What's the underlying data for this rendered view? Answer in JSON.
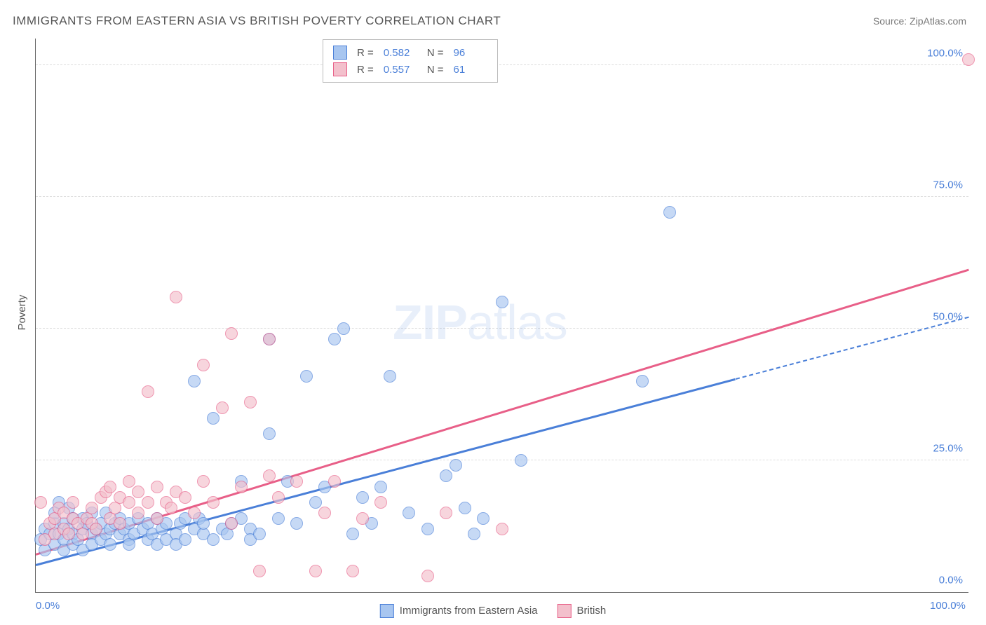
{
  "title": "IMMIGRANTS FROM EASTERN ASIA VS BRITISH POVERTY CORRELATION CHART",
  "source_label": "Source: ZipAtlas.com",
  "ylabel": "Poverty",
  "watermark": "ZIPatlas",
  "chart": {
    "type": "scatter",
    "background_color": "#ffffff",
    "grid_color": "#dddddd",
    "axis_color": "#666666",
    "tick_color": "#4a7fd8",
    "xlim": [
      0,
      100
    ],
    "ylim": [
      0,
      105
    ],
    "ytick_step": 25,
    "ytick_labels": [
      "0.0%",
      "25.0%",
      "50.0%",
      "75.0%",
      "100.0%"
    ],
    "xtick_labels": {
      "0": "0.0%",
      "100": "100.0%"
    },
    "series": [
      {
        "name": "Immigrants from Eastern Asia",
        "color_fill": "#a8c6f0",
        "color_stroke": "#4a7fd8",
        "r_value": "0.582",
        "n_value": "96",
        "trend_intercept": 5.0,
        "trend_slope": 0.47,
        "trend_solid_until": 75,
        "marker_radius": 8,
        "points": [
          [
            0.5,
            10
          ],
          [
            1,
            12
          ],
          [
            1,
            8
          ],
          [
            1.5,
            11
          ],
          [
            2,
            13
          ],
          [
            2,
            9
          ],
          [
            2,
            15
          ],
          [
            2.5,
            11
          ],
          [
            2.5,
            17
          ],
          [
            3,
            10
          ],
          [
            3,
            13
          ],
          [
            3,
            8
          ],
          [
            3.5,
            12
          ],
          [
            3.5,
            16
          ],
          [
            4,
            11
          ],
          [
            4,
            14
          ],
          [
            4,
            9
          ],
          [
            4.5,
            10
          ],
          [
            5,
            12
          ],
          [
            5,
            14
          ],
          [
            5,
            8
          ],
          [
            5.5,
            13
          ],
          [
            6,
            11
          ],
          [
            6,
            9
          ],
          [
            6,
            15
          ],
          [
            6.5,
            12
          ],
          [
            7,
            10
          ],
          [
            7,
            13
          ],
          [
            7.5,
            11
          ],
          [
            7.5,
            15
          ],
          [
            8,
            12
          ],
          [
            8,
            9
          ],
          [
            8.5,
            13
          ],
          [
            9,
            11
          ],
          [
            9,
            14
          ],
          [
            9.5,
            12
          ],
          [
            10,
            10
          ],
          [
            10,
            13
          ],
          [
            10,
            9
          ],
          [
            10.5,
            11
          ],
          [
            11,
            14
          ],
          [
            11.5,
            12
          ],
          [
            12,
            10
          ],
          [
            12,
            13
          ],
          [
            12.5,
            11
          ],
          [
            13,
            9
          ],
          [
            13,
            14
          ],
          [
            13.5,
            12
          ],
          [
            14,
            10
          ],
          [
            14,
            13
          ],
          [
            15,
            11
          ],
          [
            15,
            9
          ],
          [
            15.5,
            13
          ],
          [
            16,
            14
          ],
          [
            16,
            10
          ],
          [
            17,
            12
          ],
          [
            17,
            40
          ],
          [
            17.5,
            14
          ],
          [
            18,
            11
          ],
          [
            18,
            13
          ],
          [
            19,
            10
          ],
          [
            19,
            33
          ],
          [
            20,
            12
          ],
          [
            20.5,
            11
          ],
          [
            21,
            13
          ],
          [
            22,
            14
          ],
          [
            22,
            21
          ],
          [
            23,
            12
          ],
          [
            23,
            10
          ],
          [
            24,
            11
          ],
          [
            25,
            30
          ],
          [
            25,
            48
          ],
          [
            26,
            14
          ],
          [
            27,
            21
          ],
          [
            28,
            13
          ],
          [
            29,
            41
          ],
          [
            30,
            17
          ],
          [
            31,
            20
          ],
          [
            32,
            48
          ],
          [
            33,
            50
          ],
          [
            34,
            11
          ],
          [
            35,
            18
          ],
          [
            36,
            13
          ],
          [
            37,
            20
          ],
          [
            38,
            41
          ],
          [
            40,
            15
          ],
          [
            42,
            12
          ],
          [
            44,
            22
          ],
          [
            45,
            24
          ],
          [
            46,
            16
          ],
          [
            47,
            11
          ],
          [
            48,
            14
          ],
          [
            50,
            55
          ],
          [
            52,
            25
          ],
          [
            65,
            40
          ],
          [
            68,
            72
          ]
        ]
      },
      {
        "name": "British",
        "color_fill": "#f3c0cc",
        "color_stroke": "#e85f88",
        "r_value": "0.557",
        "n_value": "61",
        "trend_intercept": 7.0,
        "trend_slope": 0.54,
        "trend_solid_until": 100,
        "marker_radius": 8,
        "points": [
          [
            0.5,
            17
          ],
          [
            1,
            10
          ],
          [
            1.5,
            13
          ],
          [
            2,
            11
          ],
          [
            2,
            14
          ],
          [
            2.5,
            16
          ],
          [
            3,
            12
          ],
          [
            3,
            15
          ],
          [
            3.5,
            11
          ],
          [
            4,
            14
          ],
          [
            4,
            17
          ],
          [
            4.5,
            13
          ],
          [
            5,
            11
          ],
          [
            5.5,
            14
          ],
          [
            6,
            13
          ],
          [
            6,
            16
          ],
          [
            6.5,
            12
          ],
          [
            7,
            18
          ],
          [
            7.5,
            19
          ],
          [
            8,
            14
          ],
          [
            8,
            20
          ],
          [
            8.5,
            16
          ],
          [
            9,
            13
          ],
          [
            9,
            18
          ],
          [
            10,
            17
          ],
          [
            10,
            21
          ],
          [
            11,
            15
          ],
          [
            11,
            19
          ],
          [
            12,
            17
          ],
          [
            12,
            38
          ],
          [
            13,
            14
          ],
          [
            13,
            20
          ],
          [
            14,
            17
          ],
          [
            14.5,
            16
          ],
          [
            15,
            19
          ],
          [
            15,
            56
          ],
          [
            16,
            18
          ],
          [
            17,
            15
          ],
          [
            18,
            21
          ],
          [
            18,
            43
          ],
          [
            19,
            17
          ],
          [
            20,
            35
          ],
          [
            21,
            13
          ],
          [
            21,
            49
          ],
          [
            22,
            20
          ],
          [
            23,
            36
          ],
          [
            24,
            4
          ],
          [
            25,
            22
          ],
          [
            25,
            48
          ],
          [
            26,
            18
          ],
          [
            28,
            21
          ],
          [
            30,
            4
          ],
          [
            31,
            15
          ],
          [
            32,
            21
          ],
          [
            34,
            4
          ],
          [
            35,
            14
          ],
          [
            37,
            17
          ],
          [
            42,
            3
          ],
          [
            44,
            15
          ],
          [
            50,
            12
          ],
          [
            100,
            101
          ]
        ]
      }
    ]
  },
  "legend_top_headers": {
    "r": "R =",
    "n": "N ="
  },
  "legend_bottom": [
    {
      "label": "Immigrants from Eastern Asia",
      "fill": "#a8c6f0",
      "stroke": "#4a7fd8"
    },
    {
      "label": "British",
      "fill": "#f3c0cc",
      "stroke": "#e85f88"
    }
  ]
}
